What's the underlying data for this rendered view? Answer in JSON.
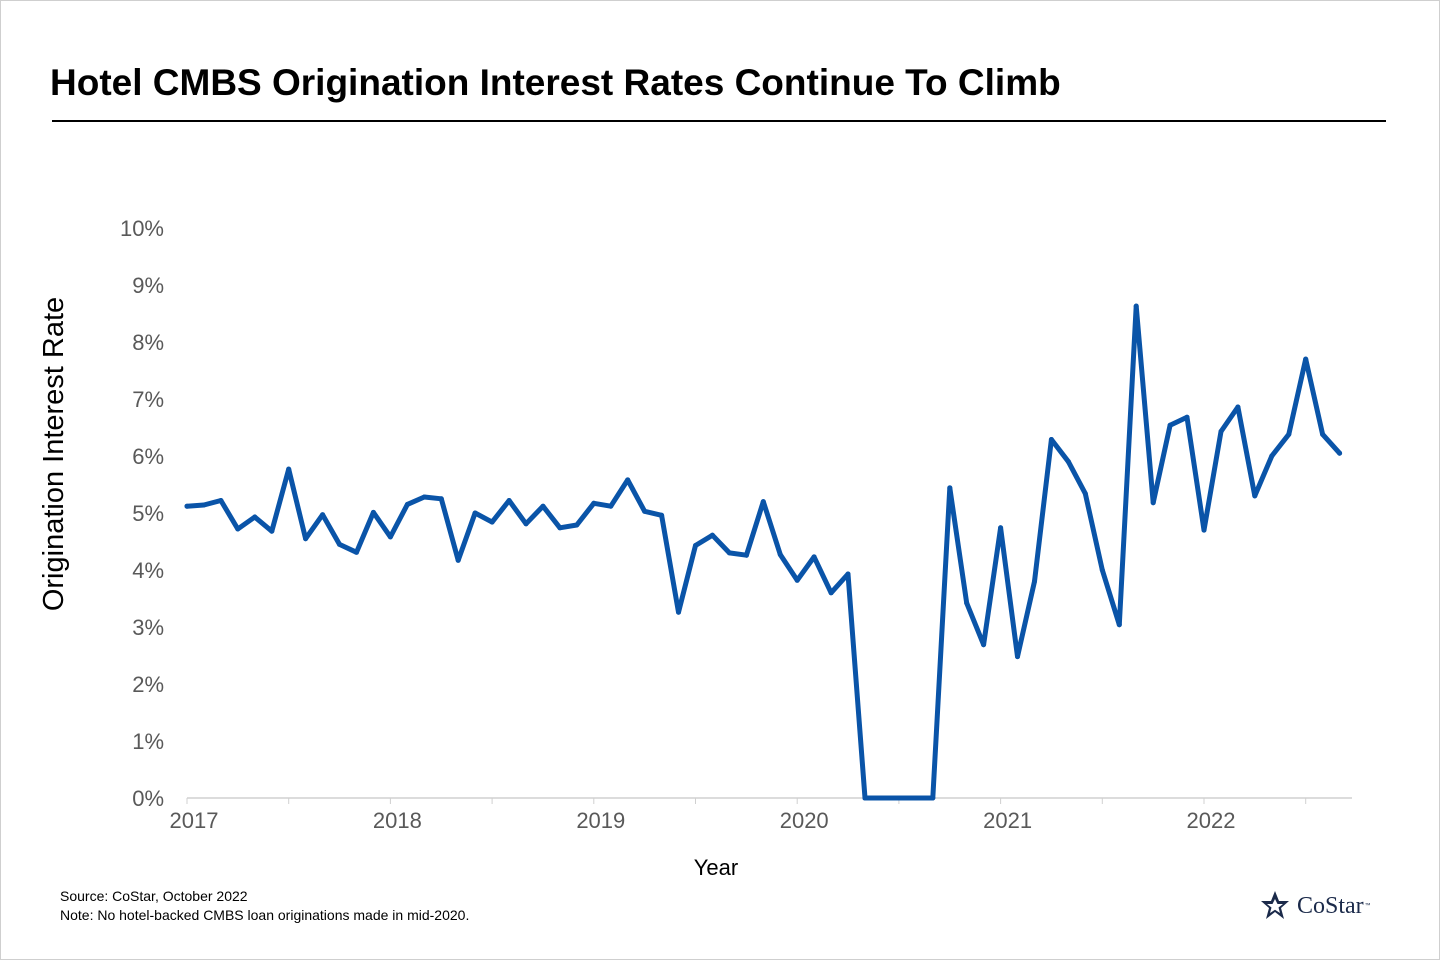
{
  "title": "Hotel CMBS Origination Interest Rates Continue To Climb",
  "footnotes": {
    "source": "Source: CoStar, October 2022",
    "note": "Note: No hotel-backed CMBS loan originations made in mid-2020."
  },
  "logo": {
    "text": "CoStar",
    "tm": "™",
    "icon": "costar-star-logo"
  },
  "colors": {
    "line": "#0a54a8",
    "axis_text": "#595959",
    "axis_line": "#d0d0d0"
  },
  "chart_data": {
    "type": "line",
    "title": "Hotel CMBS Origination Interest Rates Continue To Climb",
    "xlabel": "Year",
    "ylabel": "Origination Interest Rate",
    "x_ticks": [
      "2017",
      "2018",
      "2019",
      "2020",
      "2021",
      "2022"
    ],
    "y_ticks": [
      "0%",
      "1%",
      "2%",
      "3%",
      "4%",
      "5%",
      "6%",
      "7%",
      "8%",
      "9%",
      "10%"
    ],
    "ylim": [
      0,
      10
    ],
    "xlim": [
      "2017-01",
      "2022-12"
    ],
    "grid": false,
    "x": [
      "2017-01",
      "2017-02",
      "2017-03",
      "2017-04",
      "2017-05",
      "2017-06",
      "2017-07",
      "2017-08",
      "2017-09",
      "2017-10",
      "2017-11",
      "2017-12",
      "2018-01",
      "2018-02",
      "2018-03",
      "2018-04",
      "2018-05",
      "2018-06",
      "2018-07",
      "2018-08",
      "2018-09",
      "2018-10",
      "2018-11",
      "2018-12",
      "2019-01",
      "2019-02",
      "2019-03",
      "2019-04",
      "2019-05",
      "2019-06",
      "2019-07",
      "2019-08",
      "2019-09",
      "2019-10",
      "2019-11",
      "2019-12",
      "2020-01",
      "2020-02",
      "2020-03",
      "2020-04",
      "2020-05",
      "2020-06",
      "2020-07",
      "2020-08",
      "2020-09",
      "2020-10",
      "2020-11",
      "2020-12",
      "2021-01",
      "2021-02",
      "2021-03",
      "2021-04",
      "2021-05",
      "2021-06",
      "2021-07",
      "2021-08",
      "2021-09",
      "2021-10",
      "2021-11",
      "2021-12",
      "2022-01",
      "2022-02",
      "2022-03",
      "2022-04",
      "2022-05",
      "2022-06",
      "2022-07",
      "2022-08",
      "2022-09"
    ],
    "series": [
      {
        "values": [
          5.12,
          5.14,
          5.22,
          4.72,
          4.93,
          4.68,
          5.77,
          4.55,
          4.97,
          4.45,
          4.31,
          5.01,
          4.58,
          5.15,
          5.28,
          5.25,
          4.17,
          5.0,
          4.84,
          5.22,
          4.81,
          5.12,
          4.74,
          4.79,
          5.17,
          5.12,
          5.58,
          5.03,
          4.96,
          3.26,
          4.43,
          4.61,
          4.3,
          4.26,
          5.2,
          4.27,
          3.82,
          4.23,
          3.6,
          3.93,
          0.0,
          0.0,
          0.0,
          0.0,
          0.0,
          5.44,
          3.42,
          2.69,
          4.74,
          2.48,
          3.8,
          6.29,
          5.9,
          5.34,
          4.0,
          3.04,
          8.63,
          5.18,
          6.54,
          6.68,
          4.7,
          6.43,
          6.86,
          5.3,
          6.0,
          6.38,
          7.7,
          6.38,
          6.05
        ]
      }
    ]
  }
}
